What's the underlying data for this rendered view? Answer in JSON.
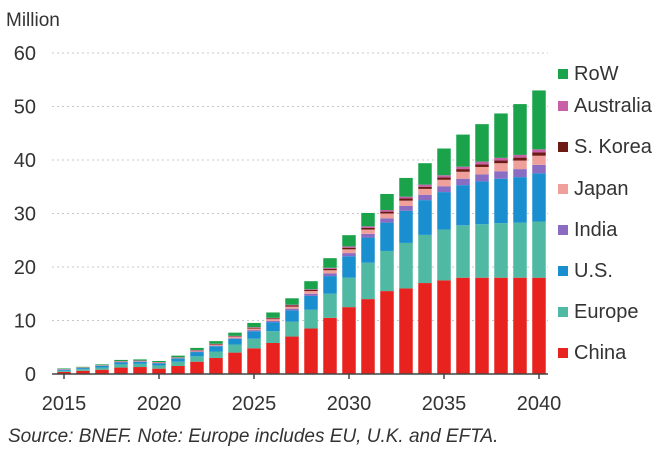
{
  "chart_data": {
    "type": "bar",
    "stacked": true,
    "ylabel": "Million",
    "ylim": [
      0,
      60
    ],
    "y_ticks": [
      0,
      10,
      20,
      30,
      40,
      50,
      60
    ],
    "x_tick_labels": [
      "2015",
      "2020",
      "2025",
      "2030",
      "2035",
      "2040"
    ],
    "grid": true,
    "legend_position": "right",
    "categories": [
      2015,
      2016,
      2017,
      2018,
      2019,
      2020,
      2021,
      2022,
      2023,
      2024,
      2025,
      2026,
      2027,
      2028,
      2029,
      2030,
      2031,
      2032,
      2033,
      2034,
      2035,
      2036,
      2037,
      2038,
      2039,
      2040
    ],
    "series": [
      {
        "name": "China",
        "color": "#e8231f",
        "values": [
          0.4,
          0.6,
          0.8,
          1.2,
          1.3,
          1.0,
          1.5,
          2.3,
          3.0,
          4.0,
          4.8,
          5.8,
          7.0,
          8.5,
          10.5,
          12.5,
          14.0,
          15.5,
          16.0,
          17.0,
          17.5,
          18.0,
          18.0,
          18.0,
          18.0,
          18.0
        ]
      },
      {
        "name": "Europe",
        "color": "#4fb9a4",
        "values": [
          0.2,
          0.3,
          0.4,
          0.6,
          0.6,
          0.6,
          0.8,
          1.0,
          1.2,
          1.5,
          1.8,
          2.2,
          2.8,
          3.5,
          4.5,
          5.5,
          6.8,
          7.5,
          8.5,
          9.0,
          9.5,
          9.8,
          10.0,
          10.2,
          10.3,
          10.5
        ]
      },
      {
        "name": "U.S.",
        "color": "#1a8fd0",
        "values": [
          0.2,
          0.2,
          0.3,
          0.4,
          0.4,
          0.4,
          0.6,
          0.8,
          1.0,
          1.1,
          1.4,
          1.7,
          2.1,
          2.6,
          3.3,
          4.0,
          4.7,
          5.3,
          6.0,
          6.5,
          7.0,
          7.5,
          8.0,
          8.3,
          8.5,
          9.0
        ]
      },
      {
        "name": "India",
        "color": "#8a6cc2",
        "values": [
          0.05,
          0.05,
          0.05,
          0.05,
          0.05,
          0.05,
          0.05,
          0.1,
          0.1,
          0.1,
          0.2,
          0.2,
          0.3,
          0.4,
          0.5,
          0.6,
          0.7,
          0.8,
          0.9,
          1.0,
          1.1,
          1.2,
          1.3,
          1.4,
          1.5,
          1.6
        ]
      },
      {
        "name": "Japan",
        "color": "#f0a09a",
        "values": [
          0.05,
          0.05,
          0.05,
          0.1,
          0.1,
          0.1,
          0.1,
          0.15,
          0.2,
          0.25,
          0.3,
          0.35,
          0.4,
          0.5,
          0.6,
          0.7,
          0.8,
          0.9,
          1.0,
          1.1,
          1.2,
          1.3,
          1.4,
          1.5,
          1.6,
          1.7
        ]
      },
      {
        "name": "S. Korea",
        "color": "#6e1a14",
        "values": [
          0.02,
          0.02,
          0.03,
          0.05,
          0.05,
          0.05,
          0.05,
          0.08,
          0.1,
          0.1,
          0.15,
          0.15,
          0.2,
          0.2,
          0.25,
          0.3,
          0.3,
          0.35,
          0.4,
          0.4,
          0.45,
          0.5,
          0.5,
          0.5,
          0.55,
          0.6
        ]
      },
      {
        "name": "Australia",
        "color": "#c860a8",
        "values": [
          0.02,
          0.02,
          0.02,
          0.03,
          0.03,
          0.03,
          0.03,
          0.05,
          0.05,
          0.08,
          0.1,
          0.1,
          0.15,
          0.15,
          0.2,
          0.25,
          0.3,
          0.3,
          0.35,
          0.4,
          0.4,
          0.45,
          0.5,
          0.5,
          0.5,
          0.6
        ]
      },
      {
        "name": "RoW",
        "color": "#1aa34a",
        "values": [
          0.1,
          0.1,
          0.15,
          0.2,
          0.2,
          0.2,
          0.3,
          0.4,
          0.5,
          0.6,
          0.8,
          1.0,
          1.2,
          1.5,
          1.8,
          2.1,
          2.5,
          3.0,
          3.5,
          4.0,
          5.0,
          6.0,
          7.0,
          8.3,
          9.5,
          11.0
        ]
      }
    ]
  },
  "source_note": "Source: BNEF. Note: Europe includes EU, U.K. and EFTA."
}
